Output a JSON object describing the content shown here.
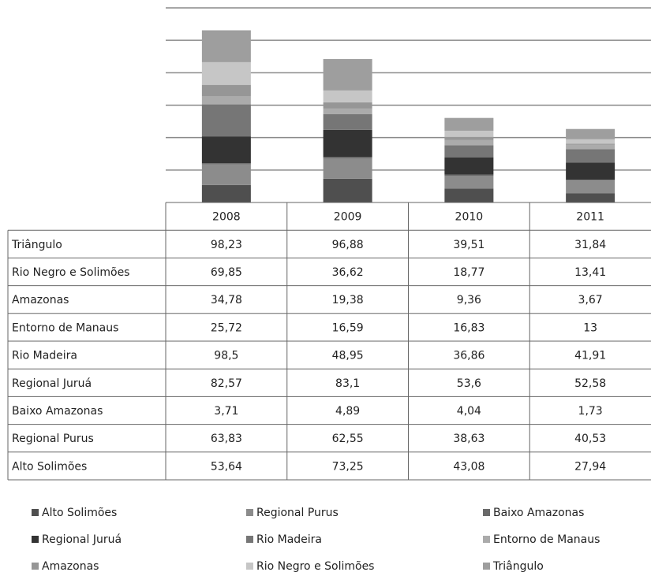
{
  "chart_data": {
    "type": "stacked_bar",
    "categories": [
      "2008",
      "2009",
      "2010",
      "2011"
    ],
    "ylim": [
      0,
      600
    ],
    "yticks": [
      0,
      100,
      200,
      300,
      400,
      500,
      600
    ],
    "grid": true,
    "series": [
      {
        "name": "Alto Solimões",
        "color": "#4f4f4f",
        "values": [
          53.64,
          73.25,
          43.08,
          27.94
        ],
        "value_labels": [
          "53,64",
          "73,25",
          "43,08",
          "27,94"
        ]
      },
      {
        "name": "Regional Purus",
        "color": "#8c8c8c",
        "values": [
          63.83,
          62.55,
          38.63,
          40.53
        ],
        "value_labels": [
          "63,83",
          "62,55",
          "38,63",
          "40,53"
        ]
      },
      {
        "name": "Baixo Amazonas",
        "color": "#6a6a6a",
        "values": [
          3.71,
          4.89,
          4.04,
          1.73
        ],
        "value_labels": [
          "3,71",
          "4,89",
          "4,04",
          "1,73"
        ]
      },
      {
        "name": "Regional Juruá",
        "color": "#333333",
        "values": [
          82.57,
          83.1,
          53.6,
          52.58
        ],
        "value_labels": [
          "82,57",
          "83,1",
          "53,6",
          "52,58"
        ]
      },
      {
        "name": "Rio Madeira",
        "color": "#767676",
        "values": [
          98.5,
          48.95,
          36.86,
          41.91
        ],
        "value_labels": [
          "98,5",
          "48,95",
          "36,86",
          "41,91"
        ]
      },
      {
        "name": "Entorno de Manaus",
        "color": "#ababab",
        "values": [
          25.72,
          16.59,
          16.83,
          13
        ],
        "value_labels": [
          "25,72",
          "16,59",
          "16,83",
          "13"
        ]
      },
      {
        "name": "Amazonas",
        "color": "#969696",
        "values": [
          34.78,
          19.38,
          9.36,
          3.67
        ],
        "value_labels": [
          "34,78",
          "19,38",
          "9,36",
          "3,67"
        ]
      },
      {
        "name": "Rio Negro e Solimões",
        "color": "#c6c6c6",
        "values": [
          69.85,
          36.62,
          18.77,
          13.41
        ],
        "value_labels": [
          "69,85",
          "36,62",
          "18,77",
          "13,41"
        ]
      },
      {
        "name": "Triângulo",
        "color": "#9e9e9e",
        "values": [
          98.23,
          96.88,
          39.51,
          31.84
        ],
        "value_labels": [
          "98,23",
          "96,88",
          "39,51",
          "31,84"
        ]
      }
    ]
  }
}
